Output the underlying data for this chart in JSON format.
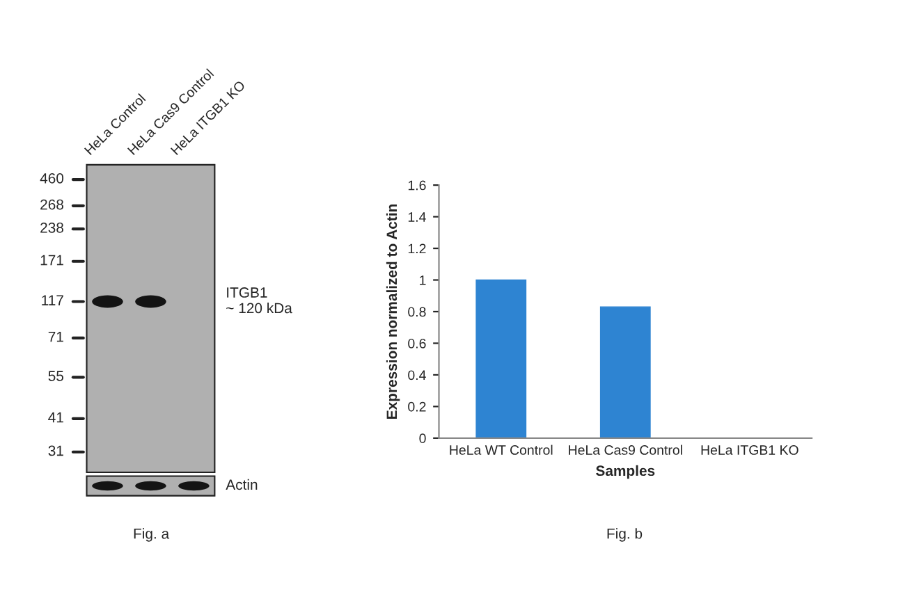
{
  "chart_data": [
    {
      "type": "other",
      "categories": [
        "HeLa Control",
        "HeLa Cas9 Control",
        "HeLa ITGB1 KO"
      ],
      "annotations": [
        "460",
        "268",
        "238",
        "171",
        "117",
        "71",
        "55",
        "41",
        "31",
        "ITGB1\n~ 120 kDa",
        "Actin",
        "Fig. a"
      ]
    },
    {
      "type": "bar",
      "xlabel": "Samples",
      "ylabel": "Expression normalized to Actin",
      "categories": [
        "HeLa WT Control",
        "HeLa Cas9 Control",
        "HeLa ITGB1 KO"
      ],
      "values": [
        1.0,
        0.83,
        0
      ],
      "color": "#2e84d2",
      "ylim": [
        0,
        1.6
      ],
      "yticks": [
        {
          "value": 0,
          "label": "0"
        },
        0.2,
        0.4,
        0.6,
        0.8,
        {
          "value": 1,
          "label": "1"
        },
        1.2,
        1.4,
        1.6
      ],
      "grid": false,
      "legend": false,
      "annotations": [
        "Fig. b"
      ]
    }
  ]
}
